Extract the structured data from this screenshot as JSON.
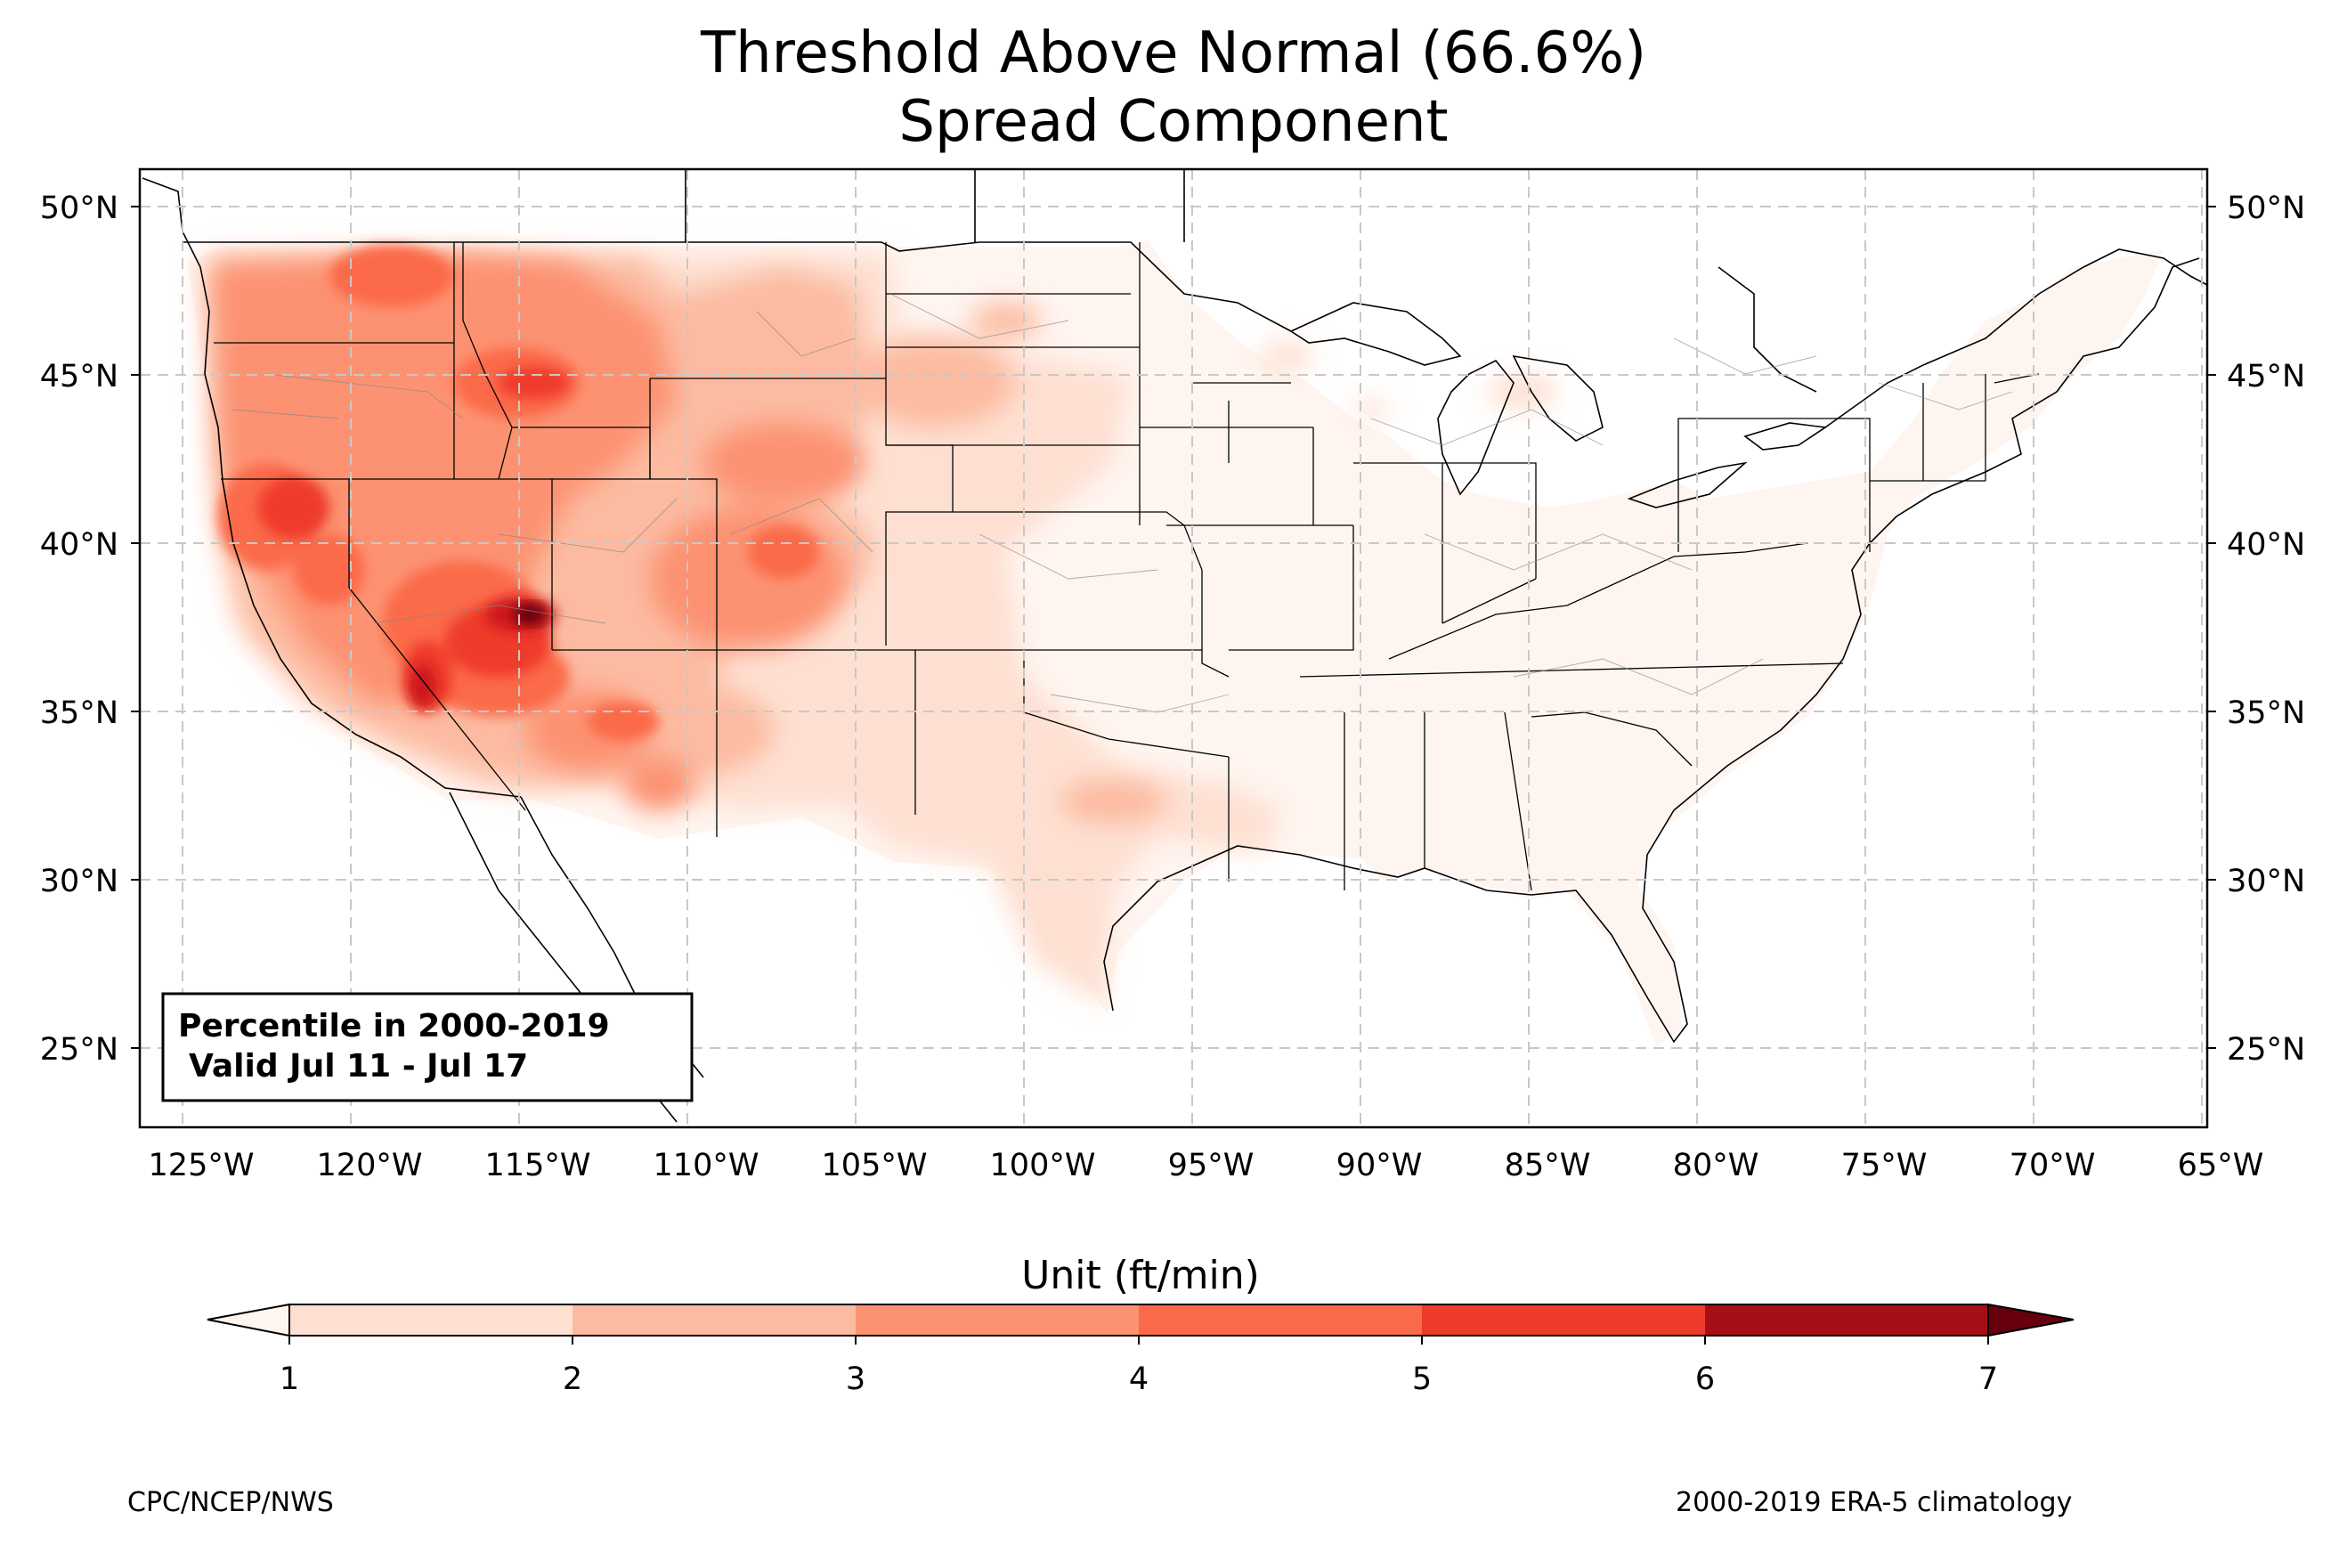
{
  "title": {
    "line1": "Threshold Above Normal (66.6%)",
    "line2": "Spread Component"
  },
  "map": {
    "region": "Contiguous United States",
    "projection": "equirectangular",
    "lon_range": [
      -126.3,
      -64.9
    ],
    "lat_range": [
      22.7,
      51.2
    ],
    "gridlines": true,
    "lat_ticks": [
      "50°N",
      "45°N",
      "40°N",
      "35°N",
      "30°N",
      "25°N"
    ],
    "lon_ticks": [
      "125°W",
      "120°W",
      "115°W",
      "110°W",
      "105°W",
      "100°W",
      "95°W",
      "90°W",
      "85°W",
      "80°W",
      "75°W",
      "70°W",
      "65°W"
    ],
    "hotspot": "southern Nevada / southwest Utah"
  },
  "annotation": {
    "line1": "Percentile in 2000-2019",
    "line2": "Valid Jul 11 - Jul 17"
  },
  "colorbar": {
    "label": "Unit (ft/min)",
    "ticks": [
      "1",
      "2",
      "3",
      "4",
      "5",
      "6",
      "7"
    ],
    "colors": [
      "#fee0d2",
      "#fcbba1",
      "#fc9272",
      "#fb6a4a",
      "#ef3b2c",
      "#cb181d",
      "#a50f15",
      "#67000d"
    ],
    "extend": "both"
  },
  "footer": {
    "left": "CPC/NCEP/NWS",
    "right": "2000-2019 ERA-5 climatology"
  }
}
